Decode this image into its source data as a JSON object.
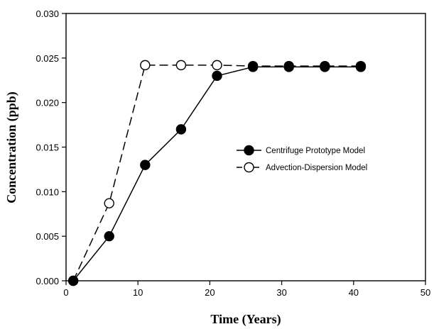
{
  "chart_data": {
    "type": "line",
    "xlabel": "Time (Years)",
    "ylabel": "Concentration (ppb)",
    "xlim": [
      0,
      50
    ],
    "ylim": [
      0,
      0.03
    ],
    "x_ticks": [
      "0",
      "10",
      "20",
      "30",
      "40",
      "50"
    ],
    "y_ticks": [
      "0.000",
      "0.005",
      "0.010",
      "0.015",
      "0.020",
      "0.025",
      "0.030"
    ],
    "grid": false,
    "legend_position": "center-right",
    "series": [
      {
        "name": "Centrifuge Prototype Model",
        "marker": "filled-circle",
        "line_style": "solid",
        "color": "#000000",
        "x": [
          1,
          6,
          11,
          16,
          21,
          26,
          31,
          36,
          41
        ],
        "y": [
          0.0,
          0.005,
          0.013,
          0.017,
          0.023,
          0.024,
          0.024,
          0.024,
          0.024
        ]
      },
      {
        "name": "Advection-Dispersion Model",
        "marker": "open-circle",
        "line_style": "dashed",
        "color": "#000000",
        "x": [
          1,
          6,
          11,
          16,
          21,
          26,
          31,
          36,
          41
        ],
        "y": [
          0.0,
          0.0087,
          0.0242,
          0.0242,
          0.0242,
          0.0241,
          0.0241,
          0.0241,
          0.0241
        ]
      }
    ]
  }
}
